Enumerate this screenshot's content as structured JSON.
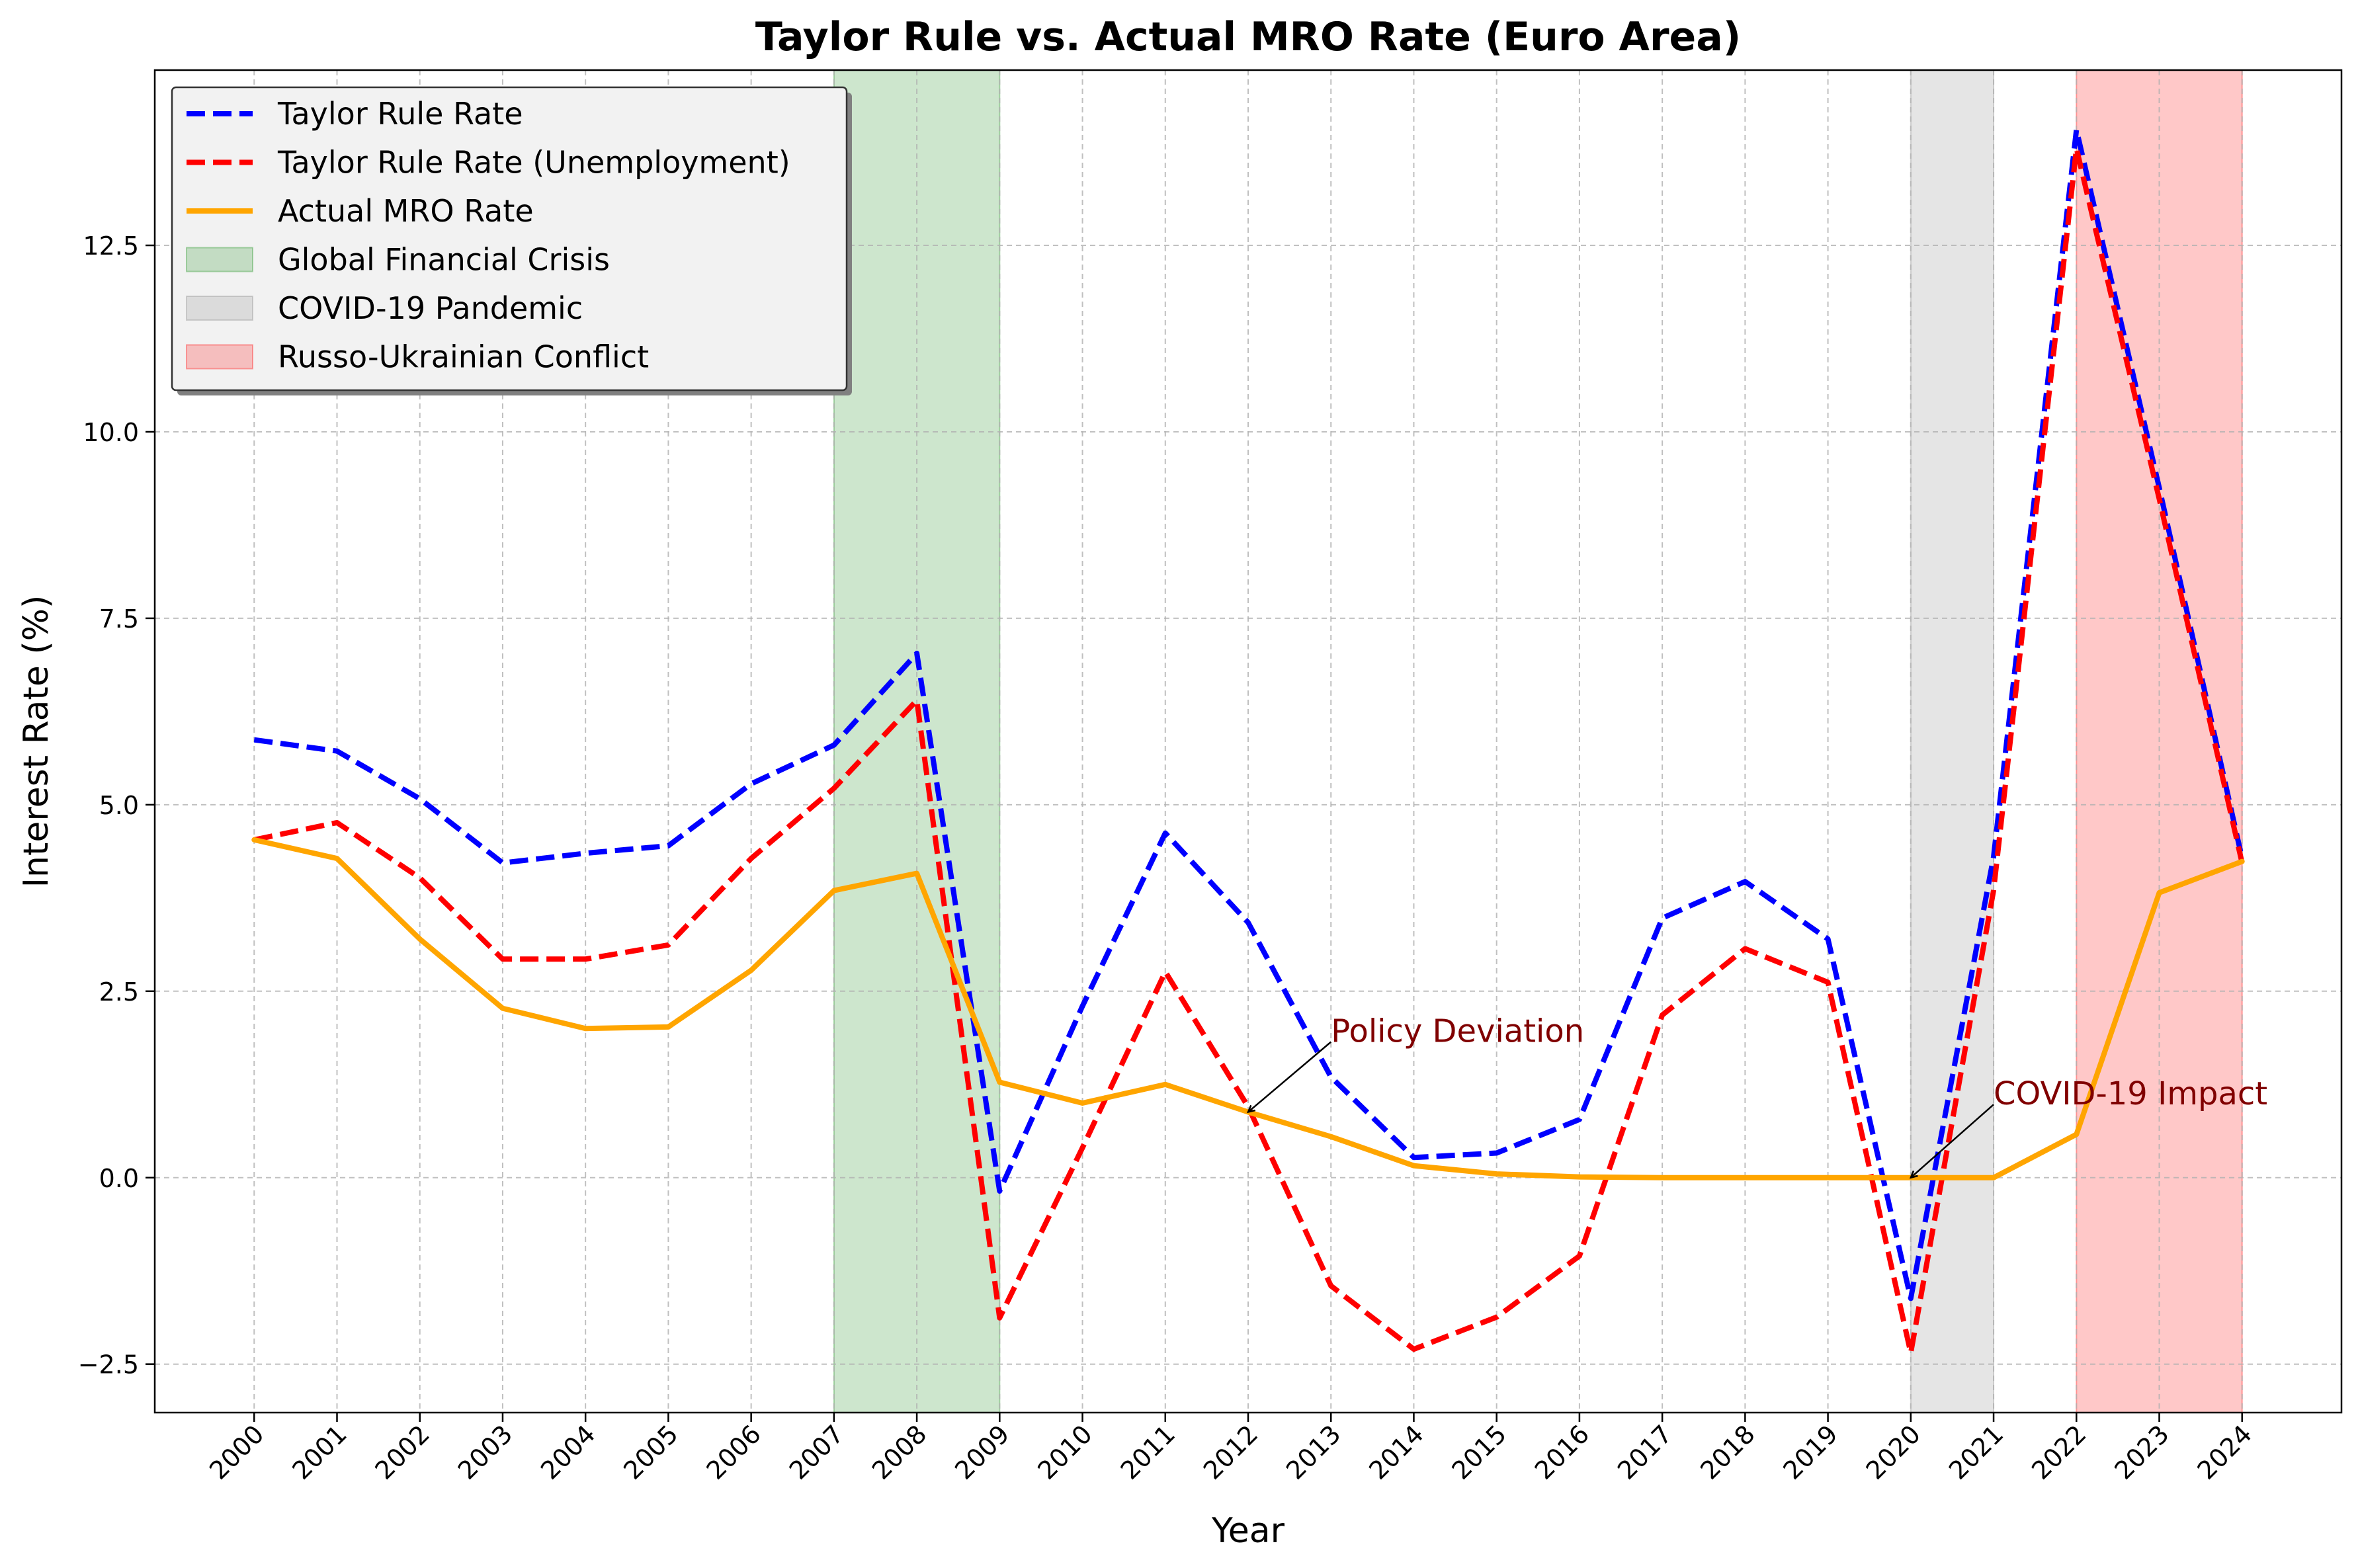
{
  "chart_data": {
    "type": "line",
    "title": "Taylor Rule vs. Actual MRO Rate (Euro Area)",
    "xlabel": "Year",
    "ylabel": "Interest Rate (%)",
    "x": [
      2000,
      2001,
      2002,
      2003,
      2004,
      2005,
      2006,
      2007,
      2008,
      2009,
      2010,
      2011,
      2012,
      2013,
      2014,
      2015,
      2016,
      2017,
      2018,
      2019,
      2020,
      2021,
      2022,
      2023,
      2024
    ],
    "xlim": [
      1998.8,
      2025.2
    ],
    "ylim": [
      -3.15,
      14.85
    ],
    "yticks": [
      -2.5,
      0.0,
      2.5,
      5.0,
      7.5,
      10.0,
      12.5
    ],
    "ytick_labels": [
      "−2.5",
      "0.0",
      "2.5",
      "5.0",
      "7.5",
      "10.0",
      "12.5"
    ],
    "grid": true,
    "legend_position": "top-left",
    "series": [
      {
        "name": "Taylor Rule Rate",
        "color": "#0000ff",
        "style": "dashed",
        "values": [
          5.87,
          5.72,
          5.08,
          4.22,
          4.35,
          4.45,
          5.28,
          5.8,
          7.03,
          -0.18,
          2.3,
          4.62,
          3.42,
          1.35,
          0.27,
          0.33,
          0.78,
          3.48,
          3.97,
          3.2,
          -1.62,
          4.3,
          14.05,
          9.25,
          4.28
        ]
      },
      {
        "name": "Taylor Rule Rate (Unemployment)",
        "color": "#ff0000",
        "style": "dashed",
        "values": [
          4.53,
          4.76,
          4.02,
          2.93,
          2.93,
          3.12,
          4.28,
          5.22,
          6.4,
          -1.88,
          0.4,
          2.76,
          0.95,
          -1.45,
          -2.3,
          -1.87,
          -1.05,
          2.18,
          3.07,
          2.62,
          -2.35,
          3.85,
          13.8,
          9.1,
          4.22
        ]
      },
      {
        "name": "Actual MRO Rate",
        "color": "#ffa500",
        "style": "solid",
        "values": [
          4.53,
          4.28,
          3.2,
          2.27,
          2.0,
          2.02,
          2.78,
          3.85,
          4.08,
          1.28,
          1.0,
          1.25,
          0.88,
          0.55,
          0.16,
          0.05,
          0.01,
          0.0,
          0.0,
          0.0,
          0.0,
          0.0,
          0.58,
          3.82,
          4.24
        ]
      }
    ],
    "shaded_regions": [
      {
        "name": "Global Financial Crisis",
        "start": 2007,
        "end": 2009,
        "color": "#4ca64c"
      },
      {
        "name": "COVID-19 Pandemic",
        "start": 2020,
        "end": 2021,
        "color": "#a0a0a0"
      },
      {
        "name": "Russo-Ukrainian Conflict",
        "start": 2022,
        "end": 2024,
        "color": "#ff3b3b"
      }
    ],
    "annotations": [
      {
        "text": "Policy Deviation",
        "xy": [
          2012,
          0.88
        ],
        "text_xy": [
          2013,
          1.82
        ],
        "color": "#800000"
      },
      {
        "text": "COVID-19 Impact",
        "xy": [
          2020,
          0.0
        ],
        "text_xy": [
          2021,
          0.98
        ],
        "color": "#800000"
      }
    ]
  }
}
